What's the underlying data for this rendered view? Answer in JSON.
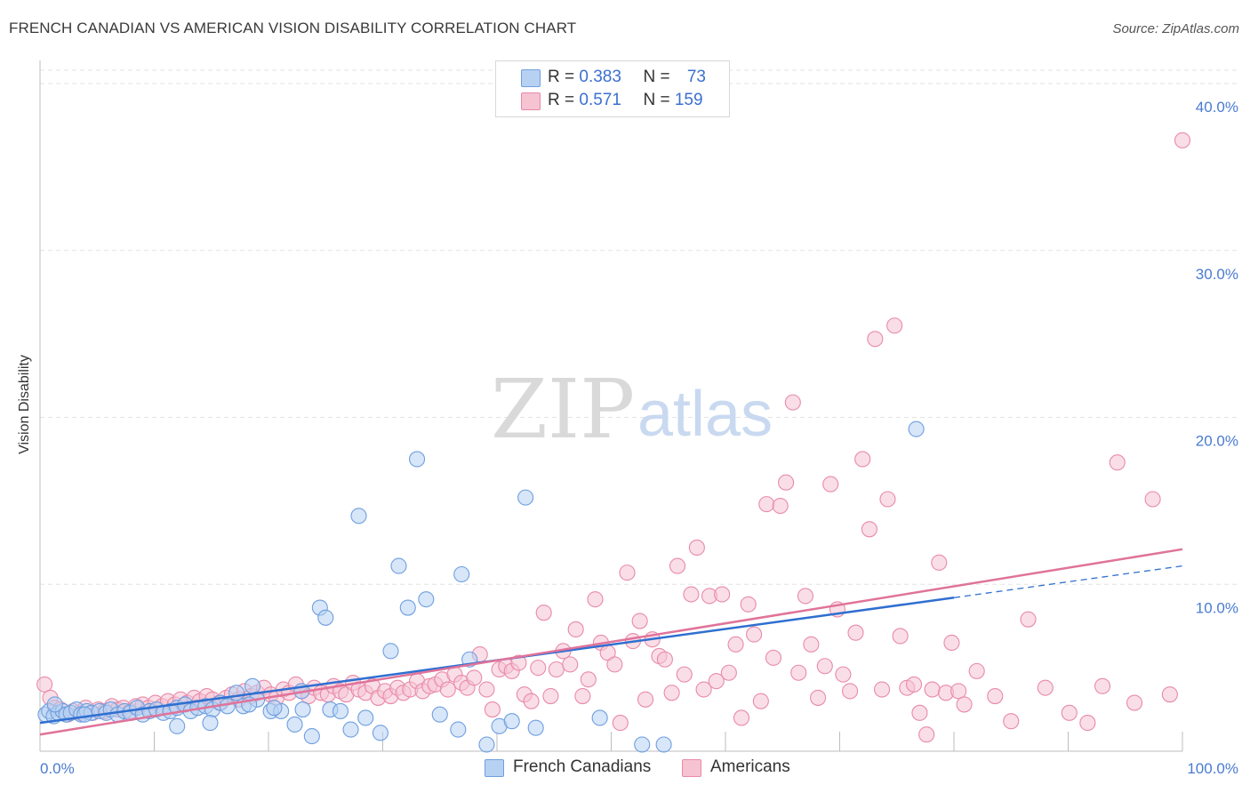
{
  "header": {
    "title": "FRENCH CANADIAN VS AMERICAN VISION DISABILITY CORRELATION CHART",
    "source": "Source: ZipAtlas.com"
  },
  "watermark": {
    "zip": "ZIP",
    "atlas": "atlas"
  },
  "colors": {
    "blue_fill": "#b7d1f3",
    "blue_stroke": "#6f9fe0",
    "blue_line": "#2f6fd0",
    "pink_fill": "#f6c3d3",
    "pink_stroke": "#e88aa8",
    "pink_line": "#e0739a",
    "grid": "#e3e3e3",
    "tick_text": "#4a7bd0"
  },
  "legend": {
    "rows": [
      {
        "r_label": "R = ",
        "r_value": "0.383",
        "n_label": "N = ",
        "n_value": "73"
      },
      {
        "r_label": "R = ",
        "r_value": "0.571",
        "n_label": "N = ",
        "n_value": "159"
      }
    ]
  },
  "bottom_legend": [
    "French Canadians",
    "Americans"
  ],
  "chart_data": {
    "type": "scatter",
    "title": "FRENCH CANADIAN VS AMERICAN VISION DISABILITY CORRELATION CHART",
    "xlabel": "",
    "ylabel": "Vision Disability",
    "xlim": [
      0,
      100
    ],
    "ylim": [
      0,
      40.8
    ],
    "x_tick_labels": [
      "0.0%",
      "100.0%"
    ],
    "y_ticks": [
      10,
      20,
      30,
      40
    ],
    "y_tick_labels": [
      "10.0%",
      "20.0%",
      "30.0%",
      "40.0%"
    ],
    "grid": "horizontal dashed",
    "legend_position": "top-center",
    "series": [
      {
        "name": "French Canadians",
        "color": "#6f9fe0",
        "trend": {
          "x": [
            0,
            80
          ],
          "y": [
            1.7,
            9.2
          ],
          "dashed_extension": {
            "x": [
              80,
              100
            ],
            "y": [
              9.2,
              11.1
            ]
          }
        },
        "points": [
          [
            0.5,
            2.2
          ],
          [
            0.8,
            2.4
          ],
          [
            1.2,
            2.1
          ],
          [
            1.6,
            2.3
          ],
          [
            2.0,
            2.4
          ],
          [
            2.3,
            2.2
          ],
          [
            2.7,
            2.3
          ],
          [
            3.2,
            2.5
          ],
          [
            3.6,
            2.2
          ],
          [
            4.1,
            2.4
          ],
          [
            4.5,
            2.3
          ],
          [
            5.2,
            2.4
          ],
          [
            5.8,
            2.3
          ],
          [
            6.2,
            2.5
          ],
          [
            6.8,
            2.2
          ],
          [
            7.4,
            2.4
          ],
          [
            7.9,
            2.3
          ],
          [
            8.5,
            2.6
          ],
          [
            9.0,
            2.2
          ],
          [
            9.6,
            2.4
          ],
          [
            10.2,
            2.5
          ],
          [
            10.8,
            2.3
          ],
          [
            11.4,
            2.4
          ],
          [
            12.0,
            2.6
          ],
          [
            12.7,
            2.8
          ],
          [
            13.2,
            2.4
          ],
          [
            13.8,
            2.6
          ],
          [
            14.5,
            2.7
          ],
          [
            15.1,
            2.5
          ],
          [
            15.8,
            2.9
          ],
          [
            16.4,
            2.7
          ],
          [
            17.2,
            3.5
          ],
          [
            17.8,
            2.7
          ],
          [
            18.6,
            3.9
          ],
          [
            19.0,
            3.1
          ],
          [
            20.2,
            2.4
          ],
          [
            21.1,
            2.4
          ],
          [
            22.3,
            1.6
          ],
          [
            23.0,
            2.5
          ],
          [
            23.8,
            0.9
          ],
          [
            24.5,
            8.6
          ],
          [
            25.0,
            8.0
          ],
          [
            25.4,
            2.5
          ],
          [
            26.3,
            2.4
          ],
          [
            27.2,
            1.3
          ],
          [
            27.9,
            14.1
          ],
          [
            28.5,
            2.0
          ],
          [
            29.8,
            1.1
          ],
          [
            30.7,
            6.0
          ],
          [
            31.4,
            11.1
          ],
          [
            32.2,
            8.6
          ],
          [
            33.0,
            17.5
          ],
          [
            33.8,
            9.1
          ],
          [
            35.0,
            2.2
          ],
          [
            36.6,
            1.3
          ],
          [
            36.9,
            10.6
          ],
          [
            37.6,
            5.5
          ],
          [
            39.1,
            0.4
          ],
          [
            40.2,
            1.5
          ],
          [
            41.3,
            1.8
          ],
          [
            42.5,
            15.2
          ],
          [
            43.4,
            1.4
          ],
          [
            49.0,
            2.0
          ],
          [
            52.7,
            0.4
          ],
          [
            54.6,
            0.4
          ],
          [
            76.7,
            19.3
          ],
          [
            1.3,
            2.8
          ],
          [
            14.9,
            1.7
          ],
          [
            12.0,
            1.5
          ],
          [
            18.3,
            2.8
          ],
          [
            20.5,
            2.6
          ],
          [
            22.9,
            3.6
          ],
          [
            3.9,
            2.2
          ]
        ]
      },
      {
        "name": "Americans",
        "color": "#e88aa8",
        "trend": {
          "x": [
            0,
            100
          ],
          "y": [
            1.0,
            12.1
          ]
        },
        "points": [
          [
            0.4,
            4.0
          ],
          [
            0.9,
            3.2
          ],
          [
            1.3,
            2.6
          ],
          [
            1.8,
            2.5
          ],
          [
            2.4,
            2.2
          ],
          [
            2.9,
            2.4
          ],
          [
            3.5,
            2.3
          ],
          [
            4.0,
            2.6
          ],
          [
            4.6,
            2.3
          ],
          [
            5.1,
            2.5
          ],
          [
            5.7,
            2.4
          ],
          [
            6.3,
            2.7
          ],
          [
            6.8,
            2.5
          ],
          [
            7.3,
            2.6
          ],
          [
            7.9,
            2.4
          ],
          [
            8.4,
            2.7
          ],
          [
            9.0,
            2.8
          ],
          [
            9.5,
            2.6
          ],
          [
            10.1,
            2.9
          ],
          [
            10.7,
            2.7
          ],
          [
            11.2,
            3.0
          ],
          [
            11.8,
            2.8
          ],
          [
            12.3,
            3.1
          ],
          [
            12.9,
            2.9
          ],
          [
            13.5,
            3.2
          ],
          [
            14.0,
            3.0
          ],
          [
            14.6,
            3.3
          ],
          [
            15.1,
            3.1
          ],
          [
            15.7,
            2.9
          ],
          [
            16.3,
            3.2
          ],
          [
            16.8,
            3.4
          ],
          [
            17.4,
            3.1
          ],
          [
            17.9,
            3.6
          ],
          [
            18.5,
            3.3
          ],
          [
            19.0,
            3.5
          ],
          [
            19.6,
            3.8
          ],
          [
            20.2,
            3.4
          ],
          [
            20.7,
            3.2
          ],
          [
            21.3,
            3.7
          ],
          [
            21.8,
            3.5
          ],
          [
            22.4,
            4.0
          ],
          [
            22.9,
            3.6
          ],
          [
            23.5,
            3.3
          ],
          [
            24.0,
            3.8
          ],
          [
            24.6,
            3.5
          ],
          [
            25.2,
            3.4
          ],
          [
            25.7,
            3.9
          ],
          [
            26.3,
            3.6
          ],
          [
            26.8,
            3.4
          ],
          [
            27.4,
            4.1
          ],
          [
            27.9,
            3.7
          ],
          [
            28.5,
            3.5
          ],
          [
            29.1,
            3.9
          ],
          [
            29.6,
            3.2
          ],
          [
            30.2,
            3.6
          ],
          [
            30.7,
            3.3
          ],
          [
            31.3,
            3.8
          ],
          [
            31.8,
            3.5
          ],
          [
            32.4,
            3.7
          ],
          [
            33.0,
            4.2
          ],
          [
            33.5,
            3.6
          ],
          [
            34.1,
            3.9
          ],
          [
            34.6,
            4.0
          ],
          [
            35.2,
            4.3
          ],
          [
            35.7,
            3.7
          ],
          [
            36.3,
            4.6
          ],
          [
            36.9,
            4.1
          ],
          [
            37.4,
            3.8
          ],
          [
            38.0,
            4.4
          ],
          [
            38.5,
            5.8
          ],
          [
            39.1,
            3.7
          ],
          [
            39.6,
            2.5
          ],
          [
            40.2,
            4.9
          ],
          [
            40.8,
            5.1
          ],
          [
            41.3,
            4.8
          ],
          [
            41.9,
            5.3
          ],
          [
            42.4,
            3.4
          ],
          [
            43.0,
            3.0
          ],
          [
            43.6,
            5.0
          ],
          [
            44.1,
            8.3
          ],
          [
            44.7,
            3.3
          ],
          [
            45.2,
            4.9
          ],
          [
            45.8,
            6.0
          ],
          [
            46.4,
            5.2
          ],
          [
            46.9,
            7.3
          ],
          [
            47.5,
            3.3
          ],
          [
            48.0,
            4.3
          ],
          [
            48.6,
            9.1
          ],
          [
            49.1,
            6.5
          ],
          [
            49.7,
            5.9
          ],
          [
            50.3,
            5.2
          ],
          [
            50.8,
            1.7
          ],
          [
            51.4,
            10.7
          ],
          [
            51.9,
            6.6
          ],
          [
            52.5,
            7.8
          ],
          [
            53.0,
            3.1
          ],
          [
            53.6,
            6.7
          ],
          [
            54.2,
            5.7
          ],
          [
            54.7,
            5.5
          ],
          [
            55.3,
            3.5
          ],
          [
            55.8,
            11.1
          ],
          [
            56.4,
            4.6
          ],
          [
            57.0,
            9.4
          ],
          [
            57.5,
            12.2
          ],
          [
            58.1,
            3.7
          ],
          [
            58.6,
            9.3
          ],
          [
            59.2,
            4.2
          ],
          [
            59.7,
            9.4
          ],
          [
            60.3,
            4.7
          ],
          [
            60.9,
            6.4
          ],
          [
            61.4,
            2.0
          ],
          [
            62.0,
            8.8
          ],
          [
            62.5,
            7.0
          ],
          [
            63.1,
            3.0
          ],
          [
            63.6,
            14.8
          ],
          [
            64.2,
            5.6
          ],
          [
            64.8,
            14.7
          ],
          [
            65.3,
            16.1
          ],
          [
            65.9,
            20.9
          ],
          [
            66.4,
            4.7
          ],
          [
            67.0,
            9.3
          ],
          [
            67.5,
            6.4
          ],
          [
            68.1,
            3.2
          ],
          [
            68.7,
            5.1
          ],
          [
            69.2,
            16.0
          ],
          [
            69.8,
            8.5
          ],
          [
            70.3,
            4.6
          ],
          [
            70.9,
            3.6
          ],
          [
            71.4,
            7.1
          ],
          [
            72.0,
            17.5
          ],
          [
            72.6,
            13.3
          ],
          [
            73.1,
            24.7
          ],
          [
            73.7,
            3.7
          ],
          [
            74.2,
            15.1
          ],
          [
            74.8,
            25.5
          ],
          [
            75.3,
            6.9
          ],
          [
            75.9,
            3.8
          ],
          [
            76.5,
            4.0
          ],
          [
            77.0,
            2.3
          ],
          [
            77.6,
            1.0
          ],
          [
            78.1,
            3.7
          ],
          [
            78.7,
            11.3
          ],
          [
            79.3,
            3.5
          ],
          [
            79.8,
            6.5
          ],
          [
            80.4,
            3.6
          ],
          [
            80.9,
            2.8
          ],
          [
            82.0,
            4.8
          ],
          [
            83.6,
            3.3
          ],
          [
            85.0,
            1.8
          ],
          [
            86.5,
            7.9
          ],
          [
            88.0,
            3.8
          ],
          [
            90.1,
            2.3
          ],
          [
            91.7,
            1.7
          ],
          [
            93.0,
            3.9
          ],
          [
            94.3,
            17.3
          ],
          [
            95.8,
            2.9
          ],
          [
            97.4,
            15.1
          ],
          [
            98.9,
            3.4
          ],
          [
            100.0,
            36.6
          ]
        ]
      }
    ]
  }
}
